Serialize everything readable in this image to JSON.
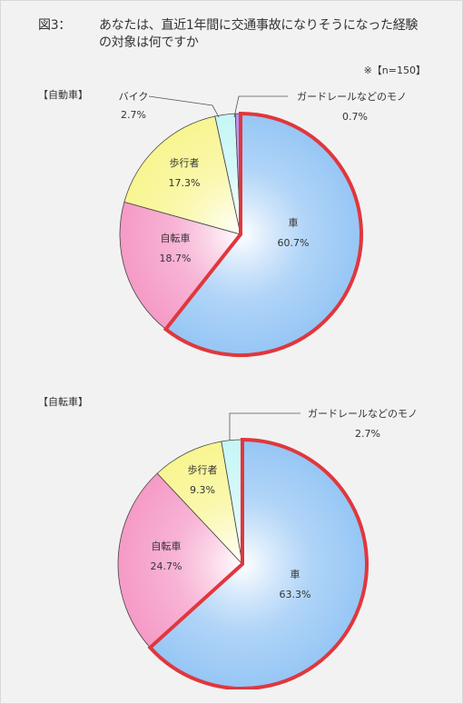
{
  "title_prefix": "図3：",
  "title_body": "あなたは、直近1年間に交通事故になりそうになった経験の対象は何ですか",
  "note": "※【n=150】",
  "chart_data": [
    {
      "type": "pie",
      "title": "【自動車】",
      "slices": [
        {
          "label": "車",
          "value": 60.7,
          "value_label": "60.7%",
          "color": "#96c6f5",
          "highlight": true
        },
        {
          "label": "自転車",
          "value": 18.7,
          "value_label": "18.7%",
          "color": "#f59ac6"
        },
        {
          "label": "歩行者",
          "value": 17.3,
          "value_label": "17.3%",
          "color": "#f8f590"
        },
        {
          "label": "バイク",
          "value": 2.7,
          "value_label": "2.7%",
          "color": "#c6f6f6"
        },
        {
          "label": "ガードレールなどのモノ",
          "value": 0.7,
          "value_label": "0.7%",
          "color": "#b88ef4"
        }
      ]
    },
    {
      "type": "pie",
      "title": "【自転車】",
      "slices": [
        {
          "label": "車",
          "value": 63.3,
          "value_label": "63.3%",
          "color": "#96c6f5",
          "highlight": true
        },
        {
          "label": "自転車",
          "value": 24.7,
          "value_label": "24.7%",
          "color": "#f59ac6"
        },
        {
          "label": "歩行者",
          "value": 9.3,
          "value_label": "9.3%",
          "color": "#f8f590"
        },
        {
          "label": "ガードレールなどのモノ",
          "value": 2.7,
          "value_label": "2.7%",
          "color": "#c6f6f6"
        }
      ]
    }
  ]
}
